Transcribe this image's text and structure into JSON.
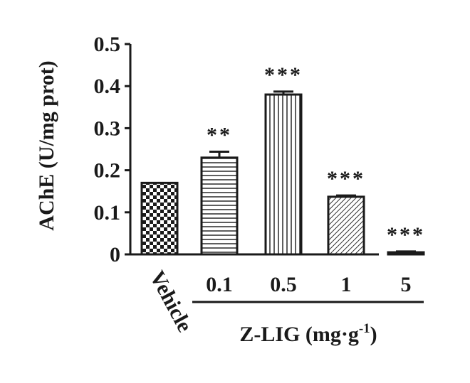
{
  "chart_data": {
    "type": "bar",
    "categories": [
      "Vehicle",
      "0.1",
      "0.5",
      "1",
      "5"
    ],
    "values": [
      0.17,
      0.23,
      0.38,
      0.137,
      0.005
    ],
    "errors": [
      0.0,
      0.014,
      0.007,
      0.003,
      0.002
    ],
    "significance": [
      "",
      "**",
      "***",
      "***",
      "***"
    ],
    "patterns": [
      "checker",
      "horizontal-lines",
      "vertical-lines",
      "diagonal-lines",
      "solid"
    ],
    "ylabel": "AChE (U/mg prot)",
    "yticks": [
      "0",
      "0.1",
      "0.2",
      "0.3",
      "0.4",
      "0.5"
    ],
    "ylim": [
      0,
      0.5
    ],
    "group_label": {
      "text": "Z-LIG (mg·g",
      "superscript": "-1",
      "suffix": ")"
    },
    "grid": false,
    "colors": {
      "bar_stroke": "#1a1a1a",
      "bar_fill": "#ffffff"
    }
  }
}
